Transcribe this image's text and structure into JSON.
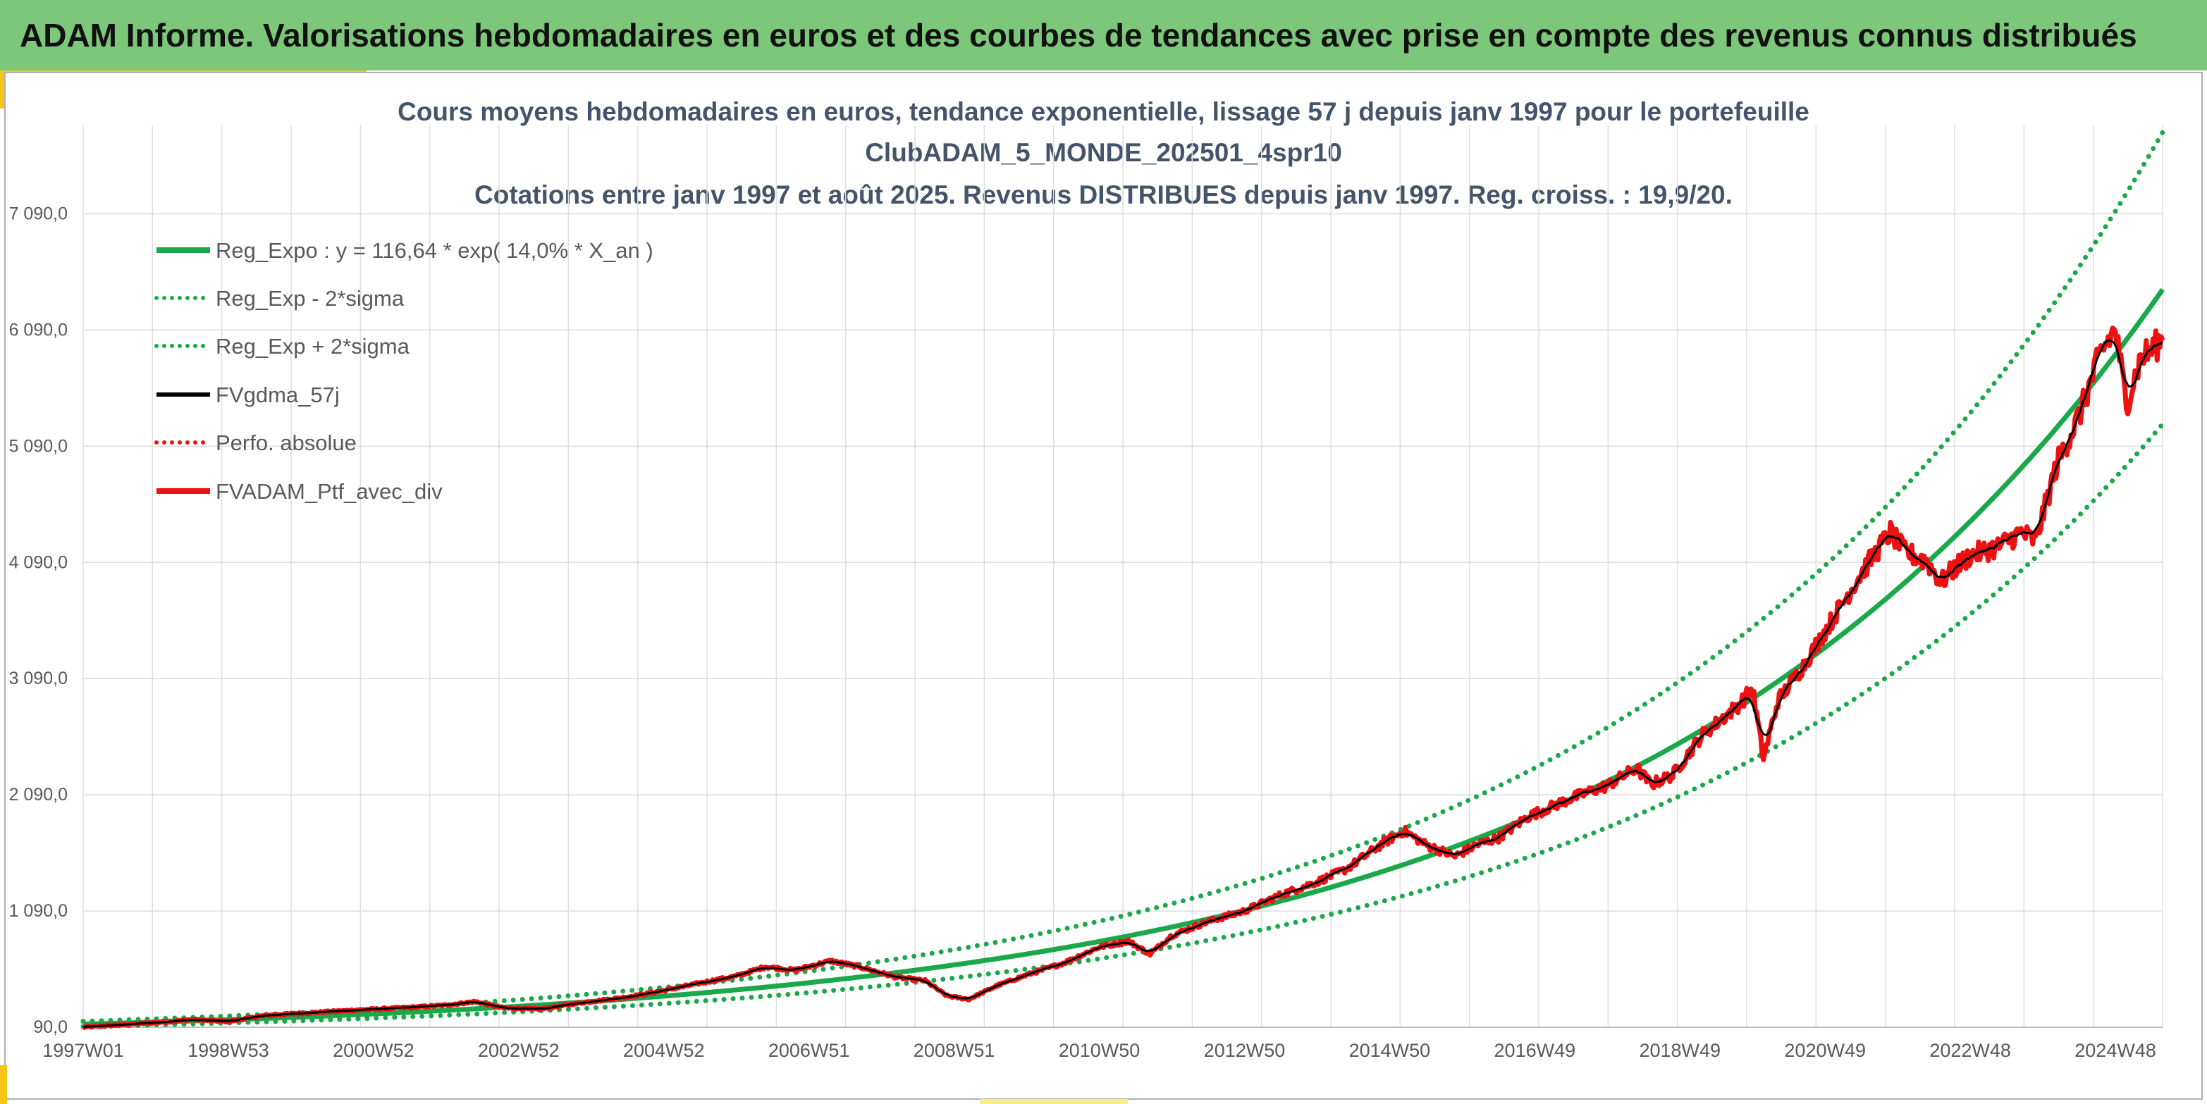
{
  "header": {
    "title": "ADAM Informe. Valorisations hebdomadaires en euros et des courbes de tendances avec prise en compte des revenus connus distribués"
  },
  "colors": {
    "header_bg": "#7dc77a",
    "accent": "#f5c518",
    "regression": "#1aa84a",
    "bands": "#1aa84a",
    "smooth": "#000000",
    "portfolio": "#ee1111",
    "perfo": "#ee1111"
  },
  "chart_data": {
    "type": "line",
    "title_lines": [
      "Cours moyens hebdomadaires en euros, tendance exponentielle, lissage 57 j depuis janv 1997 pour le portefeuille",
      "ClubADAM_5_MONDE_202501_4spr10",
      "Cotations entre janv 1997 et août 2025. Revenus DISTRIBUES depuis janv 1997. Reg. croiss. : 19,9/20."
    ],
    "x_tick_labels": [
      "1997W01",
      "1998W53",
      "2000W52",
      "2002W52",
      "2004W52",
      "2006W51",
      "2008W51",
      "2010W50",
      "2012W50",
      "2014W50",
      "2016W49",
      "2018W49",
      "2020W49",
      "2022W48",
      "2024W48"
    ],
    "y_tick_labels": [
      "90,0",
      "1 090,0",
      "2 090,0",
      "3 090,0",
      "4 090,0",
      "5 090,0",
      "6 090,0",
      "7 090,0"
    ],
    "y_ticks": [
      90,
      1090,
      2090,
      3090,
      4090,
      5090,
      6090,
      7090
    ],
    "ylim": [
      90,
      7790
    ],
    "xlim": [
      1997.0,
      2025.65
    ],
    "grid": true,
    "legend_position": "top-left",
    "series": [
      {
        "name": "Reg_Expo : y = 116,64 * exp( 14,0% *  X_an )",
        "style": "solid-thick",
        "color": "#1aa84a",
        "model": {
          "a": 116.64,
          "b": 0.14,
          "x0": 1997.0
        }
      },
      {
        "name": "Reg_Exp - 2*sigma",
        "style": "dotted",
        "color": "#1aa84a",
        "model": {
          "factor": 0.82
        }
      },
      {
        "name": "Reg_Exp + 2*sigma",
        "style": "dotted",
        "color": "#1aa84a",
        "model": {
          "factor": 1.21
        }
      },
      {
        "name": "FVgdma_57j",
        "style": "solid",
        "color": "#000000"
      },
      {
        "name": "Perfo. absolue",
        "style": "dotted",
        "color": "#ee1111"
      },
      {
        "name": "FVADAM_Ptf_avec_div",
        "style": "solid-thick",
        "color": "#ee1111",
        "points": [
          [
            1997.0,
            90
          ],
          [
            1997.5,
            110
          ],
          [
            1998.0,
            130
          ],
          [
            1998.5,
            155
          ],
          [
            1999.0,
            140
          ],
          [
            1999.5,
            190
          ],
          [
            2000.0,
            210
          ],
          [
            2000.7,
            235
          ],
          [
            2001.5,
            260
          ],
          [
            2002.0,
            280
          ],
          [
            2002.4,
            310
          ],
          [
            2002.8,
            255
          ],
          [
            2003.3,
            245
          ],
          [
            2003.8,
            295
          ],
          [
            2004.5,
            350
          ],
          [
            2005.0,
            405
          ],
          [
            2005.5,
            470
          ],
          [
            2006.0,
            530
          ],
          [
            2006.4,
            610
          ],
          [
            2006.8,
            580
          ],
          [
            2007.3,
            660
          ],
          [
            2007.7,
            610
          ],
          [
            2008.2,
            520
          ],
          [
            2008.6,
            490
          ],
          [
            2008.9,
            360
          ],
          [
            2009.2,
            330
          ],
          [
            2009.6,
            450
          ],
          [
            2010.0,
            540
          ],
          [
            2010.5,
            640
          ],
          [
            2011.0,
            780
          ],
          [
            2011.4,
            830
          ],
          [
            2011.7,
            720
          ],
          [
            2012.0,
            880
          ],
          [
            2012.5,
            1000
          ],
          [
            2013.0,
            1090
          ],
          [
            2013.5,
            1230
          ],
          [
            2014.0,
            1340
          ],
          [
            2014.4,
            1450
          ],
          [
            2014.9,
            1670
          ],
          [
            2015.2,
            1780
          ],
          [
            2015.5,
            1660
          ],
          [
            2015.9,
            1560
          ],
          [
            2016.2,
            1660
          ],
          [
            2016.5,
            1720
          ],
          [
            2016.9,
            1900
          ],
          [
            2017.5,
            2060
          ],
          [
            2018.0,
            2170
          ],
          [
            2018.4,
            2320
          ],
          [
            2018.6,
            2180
          ],
          [
            2018.9,
            2260
          ],
          [
            2019.3,
            2600
          ],
          [
            2019.8,
            2860
          ],
          [
            2020.0,
            3000
          ],
          [
            2020.15,
            2400
          ],
          [
            2020.35,
            2900
          ],
          [
            2020.7,
            3200
          ],
          [
            2021.0,
            3500
          ],
          [
            2021.5,
            4000
          ],
          [
            2021.9,
            4350
          ],
          [
            2022.1,
            4180
          ],
          [
            2022.4,
            4100
          ],
          [
            2022.6,
            3920
          ],
          [
            2022.8,
            4050
          ],
          [
            2023.0,
            4150
          ],
          [
            2023.4,
            4230
          ],
          [
            2023.7,
            4350
          ],
          [
            2023.9,
            4270
          ],
          [
            2024.2,
            4950
          ],
          [
            2024.5,
            5350
          ],
          [
            2024.8,
            5900
          ],
          [
            2025.0,
            6100
          ],
          [
            2025.15,
            5450
          ],
          [
            2025.35,
            5850
          ],
          [
            2025.65,
            6000
          ]
        ]
      }
    ]
  }
}
